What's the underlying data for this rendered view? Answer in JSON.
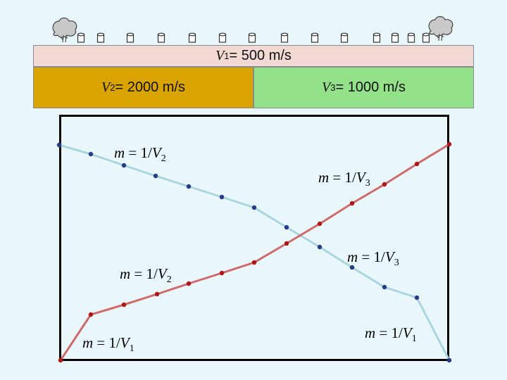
{
  "layers": {
    "layer1": {
      "symbol": "V",
      "sub": "1",
      "value": " = 500 m/s"
    },
    "layer2": {
      "symbol": "V",
      "sub": "2",
      "value": " = 2000 m/s"
    },
    "layer3": {
      "symbol": "V",
      "sub": "3",
      "value": " = 1000 m/s"
    }
  },
  "labels": {
    "blue_v2": {
      "m": "m",
      "eq": " = 1/",
      "v": "V",
      "sub": "2"
    },
    "red_v3": {
      "m": "m",
      "eq": " = 1/",
      "v": "V",
      "sub": "3"
    },
    "blue_v3": {
      "m": "m",
      "eq": " = 1/",
      "v": "V",
      "sub": "3"
    },
    "red_v2": {
      "m": "m",
      "eq": " = 1/",
      "v": "V",
      "sub": "2"
    },
    "red_v1": {
      "m": "m",
      "eq": " = 1/",
      "v": "V",
      "sub": "1"
    },
    "blue_v1": {
      "m": "m",
      "eq": " = 1/",
      "v": "V",
      "sub": "1"
    }
  },
  "colors": {
    "blue_line": "#a9d5df",
    "blue_point": "#2a3a8a",
    "red_line": "#cf6a6a",
    "red_point": "#b01616",
    "source_icon": "tree-icon",
    "receiver_icon": "geophone-icon"
  },
  "receivers_count": 14
}
